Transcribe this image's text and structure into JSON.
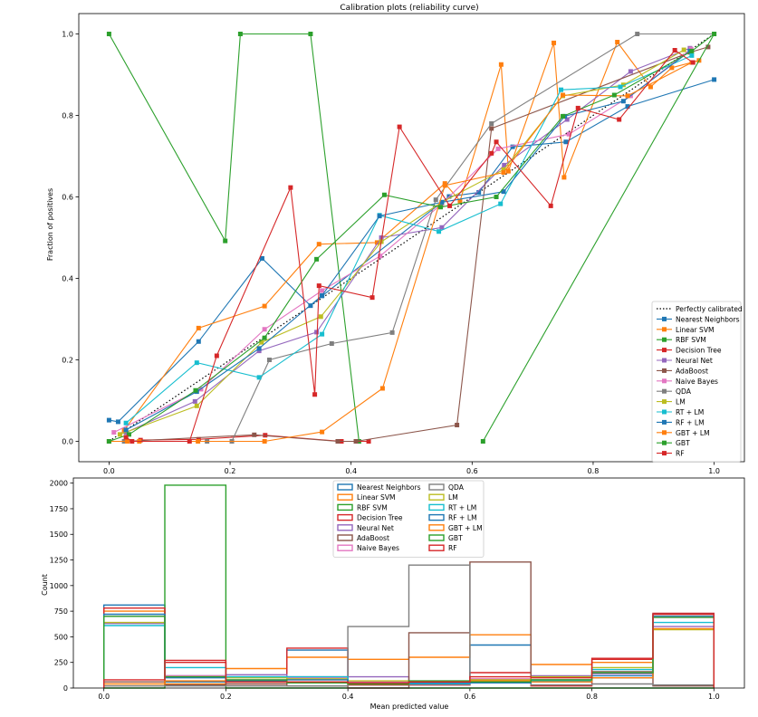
{
  "chart_data": [
    {
      "type": "line",
      "title": "Calibration plots  (reliability curve)",
      "xlabel": "",
      "ylabel": "Fraction of positives",
      "xlim": [
        -0.05,
        1.05
      ],
      "ylim": [
        -0.05,
        1.05
      ],
      "xticks": [
        "0.0",
        "0.2",
        "0.4",
        "0.6",
        "0.8",
        "1.0"
      ],
      "yticks": [
        "0.0",
        "0.2",
        "0.4",
        "0.6",
        "0.8",
        "1.0"
      ],
      "grid": false,
      "legend_position": "lower-right",
      "reference": {
        "name": "Perfectly calibrated",
        "x": [
          0,
          1
        ],
        "y": [
          0,
          1
        ],
        "style": "dotted",
        "color": "#000000"
      },
      "series": [
        {
          "name": "Nearest Neighbors",
          "color": "#1f77b4",
          "x": [
            0.0,
            0.015,
            0.148,
            0.253,
            0.333,
            0.352,
            0.562,
            0.611,
            0.667,
            0.755,
            0.857,
            1.0
          ],
          "y": [
            0.052,
            0.048,
            0.245,
            0.449,
            0.333,
            0.357,
            0.601,
            0.611,
            0.723,
            0.735,
            0.822,
            0.888
          ]
        },
        {
          "name": "Linear SVM",
          "color": "#ff7f0e",
          "x": [
            0.025,
            0.148,
            0.257,
            0.347,
            0.443,
            0.555,
            0.58,
            0.648,
            0.66,
            0.735,
            0.752,
            0.84,
            0.895,
            0.93,
            0.975
          ],
          "y": [
            0.027,
            0.278,
            0.332,
            0.484,
            0.488,
            0.633,
            0.59,
            0.925,
            0.663,
            0.978,
            0.648,
            0.98,
            0.87,
            0.917,
            0.935
          ]
        },
        {
          "name": "RBF SVM",
          "color": "#2ca02c",
          "x": [
            0.0,
            0.192,
            0.217,
            0.333,
            0.413
          ],
          "y": [
            1.0,
            0.492,
            1.0,
            1.0,
            0.0
          ]
        },
        {
          "name": "Decision Tree",
          "color": "#d62728",
          "x": [
            0.052,
            0.148,
            0.258,
            0.384,
            0.429
          ],
          "y": [
            0.003,
            0.005,
            0.015,
            0.0,
            0.0
          ]
        },
        {
          "name": "Neural Net",
          "color": "#9467bd",
          "x": [
            0.028,
            0.142,
            0.248,
            0.343,
            0.45,
            0.55,
            0.653,
            0.757,
            0.862,
            0.96
          ],
          "y": [
            0.022,
            0.098,
            0.222,
            0.268,
            0.5,
            0.525,
            0.678,
            0.79,
            0.908,
            0.965
          ]
        },
        {
          "name": "AdaBoost",
          "color": "#8c564b",
          "x": [
            0.028,
            0.24,
            0.378,
            0.408,
            0.575,
            0.632,
            0.96,
            0.99
          ],
          "y": [
            0.0,
            0.016,
            0.0,
            0.0,
            0.04,
            0.768,
            0.955,
            0.968
          ]
        },
        {
          "name": "Naive Bayes",
          "color": "#e377c2",
          "x": [
            0.008,
            0.152,
            0.257,
            0.352,
            0.448,
            0.55,
            0.643,
            0.76,
            0.862,
            0.962
          ],
          "y": [
            0.022,
            0.128,
            0.275,
            0.37,
            0.455,
            0.583,
            0.718,
            0.754,
            0.848,
            0.963
          ]
        },
        {
          "name": "QDA",
          "color": "#7f7f7f",
          "x": [
            0.0,
            0.025,
            0.162,
            0.203,
            0.265,
            0.368,
            0.468,
            0.54,
            0.632,
            0.873,
            1.0
          ],
          "y": [
            0.0,
            0.0,
            0.0,
            0.0,
            0.2,
            0.24,
            0.267,
            0.593,
            0.78,
            1.0,
            1.0
          ]
        },
        {
          "name": "LM",
          "color": "#bcbd22",
          "x": [
            0.018,
            0.145,
            0.252,
            0.35,
            0.45,
            0.55,
            0.652,
            0.75,
            0.85,
            0.95
          ],
          "y": [
            0.017,
            0.087,
            0.243,
            0.306,
            0.49,
            0.587,
            0.667,
            0.848,
            0.875,
            0.961
          ]
        },
        {
          "name": "RT + LM",
          "color": "#17becf",
          "x": [
            0.028,
            0.145,
            0.248,
            0.352,
            0.447,
            0.545,
            0.647,
            0.747,
            0.845,
            0.963
          ],
          "y": [
            0.045,
            0.193,
            0.157,
            0.263,
            0.555,
            0.515,
            0.583,
            0.863,
            0.87,
            0.947
          ]
        },
        {
          "name": "RF + LM",
          "color": "#1f77b4",
          "x": [
            0.028,
            0.145,
            0.248,
            0.352,
            0.447,
            0.55,
            0.652,
            0.753,
            0.85,
            0.96
          ],
          "y": [
            0.028,
            0.122,
            0.228,
            0.358,
            0.553,
            0.587,
            0.613,
            0.798,
            0.835,
            0.958
          ]
        },
        {
          "name": "GBT + LM",
          "color": "#ff7f0e",
          "x": [
            0.0,
            0.03,
            0.05,
            0.147,
            0.257,
            0.352,
            0.452,
            0.555,
            0.652,
            0.75,
            0.857,
            0.963
          ],
          "y": [
            0.0,
            0.0,
            0.0,
            0.0,
            0.0,
            0.023,
            0.13,
            0.628,
            0.66,
            0.85,
            0.848,
            0.93
          ]
        },
        {
          "name": "GBT",
          "color": "#2ca02c",
          "x": [
            0.0,
            0.033,
            0.143,
            0.257,
            0.343,
            0.455,
            0.548,
            0.64,
            0.75,
            0.835,
            0.963,
            1.0,
            0.618
          ],
          "y": [
            0.0,
            0.017,
            0.125,
            0.254,
            0.447,
            0.605,
            0.575,
            0.6,
            0.798,
            0.85,
            0.958,
            1.0,
            0.0
          ]
        },
        {
          "name": "RF",
          "color": "#d62728",
          "x": [
            0.028,
            0.038,
            0.133,
            0.178,
            0.3,
            0.34,
            0.347,
            0.435,
            0.48,
            0.563,
            0.632,
            0.64,
            0.73,
            0.775,
            0.843,
            0.935,
            0.965
          ],
          "y": [
            0.01,
            0.0,
            0.0,
            0.21,
            0.623,
            0.115,
            0.382,
            0.353,
            0.772,
            0.578,
            0.707,
            0.735,
            0.578,
            0.818,
            0.79,
            0.96,
            0.93
          ]
        }
      ]
    },
    {
      "type": "histogram",
      "title": "",
      "xlabel": "Mean predicted value",
      "ylabel": "Count",
      "xlim": [
        -0.05,
        1.05
      ],
      "ylim": [
        0,
        2050
      ],
      "xticks": [
        "0.0",
        "0.2",
        "0.4",
        "0.6",
        "0.8",
        "1.0"
      ],
      "yticks": [
        "0",
        "250",
        "500",
        "750",
        "1000",
        "1250",
        "1500",
        "1750",
        "2000"
      ],
      "bin_edges": [
        0.0,
        0.1,
        0.2,
        0.3,
        0.4,
        0.5,
        0.6,
        0.7,
        0.8,
        0.9,
        1.0
      ],
      "legend_position": "top-center",
      "series": [
        {
          "name": "Nearest Neighbors",
          "color": "#1f77b4",
          "values": [
            810,
            60,
            110,
            370,
            30,
            30,
            420,
            110,
            120,
            700
          ]
        },
        {
          "name": "Linear SVM",
          "color": "#ff7f0e",
          "values": [
            750,
            40,
            190,
            300,
            280,
            300,
            520,
            230,
            250,
            720
          ]
        },
        {
          "name": "RBF SVM",
          "color": "#2ca02c",
          "values": [
            0,
            1980,
            0,
            0,
            0,
            0,
            0,
            0,
            0,
            0
          ]
        },
        {
          "name": "Decision Tree",
          "color": "#d62728",
          "values": [
            780,
            250,
            40,
            390,
            30,
            30,
            150,
            20,
            280,
            730
          ]
        },
        {
          "name": "Neural Net",
          "color": "#9467bd",
          "values": [
            630,
            120,
            130,
            110,
            110,
            50,
            60,
            120,
            140,
            600
          ]
        },
        {
          "name": "AdaBoost",
          "color": "#8c564b",
          "values": [
            60,
            30,
            40,
            20,
            0,
            540,
            1230,
            80,
            160,
            20
          ]
        },
        {
          "name": "Naive Bayes",
          "color": "#e377c2",
          "values": [
            700,
            120,
            80,
            100,
            60,
            40,
            90,
            80,
            150,
            690
          ]
        },
        {
          "name": "QDA",
          "color": "#7f7f7f",
          "values": [
            20,
            20,
            20,
            20,
            600,
            1200,
            80,
            30,
            40,
            30
          ]
        },
        {
          "name": "LM",
          "color": "#bcbd22",
          "values": [
            640,
            110,
            100,
            90,
            70,
            60,
            80,
            110,
            200,
            570
          ]
        },
        {
          "name": "RT + LM",
          "color": "#17becf",
          "values": [
            610,
            200,
            110,
            110,
            50,
            40,
            60,
            70,
            180,
            640
          ]
        },
        {
          "name": "RF + LM",
          "color": "#1f77b4",
          "values": [
            720,
            100,
            70,
            80,
            50,
            50,
            50,
            60,
            100,
            720
          ]
        },
        {
          "name": "GBT + LM",
          "color": "#ff7f0e",
          "values": [
            40,
            70,
            60,
            60,
            40,
            60,
            70,
            60,
            100,
            580
          ]
        },
        {
          "name": "GBT",
          "color": "#2ca02c",
          "values": [
            700,
            110,
            80,
            50,
            40,
            70,
            60,
            80,
            150,
            690
          ]
        },
        {
          "name": "RF",
          "color": "#d62728",
          "values": [
            80,
            270,
            60,
            60,
            50,
            60,
            110,
            100,
            290,
            720
          ]
        }
      ]
    }
  ]
}
